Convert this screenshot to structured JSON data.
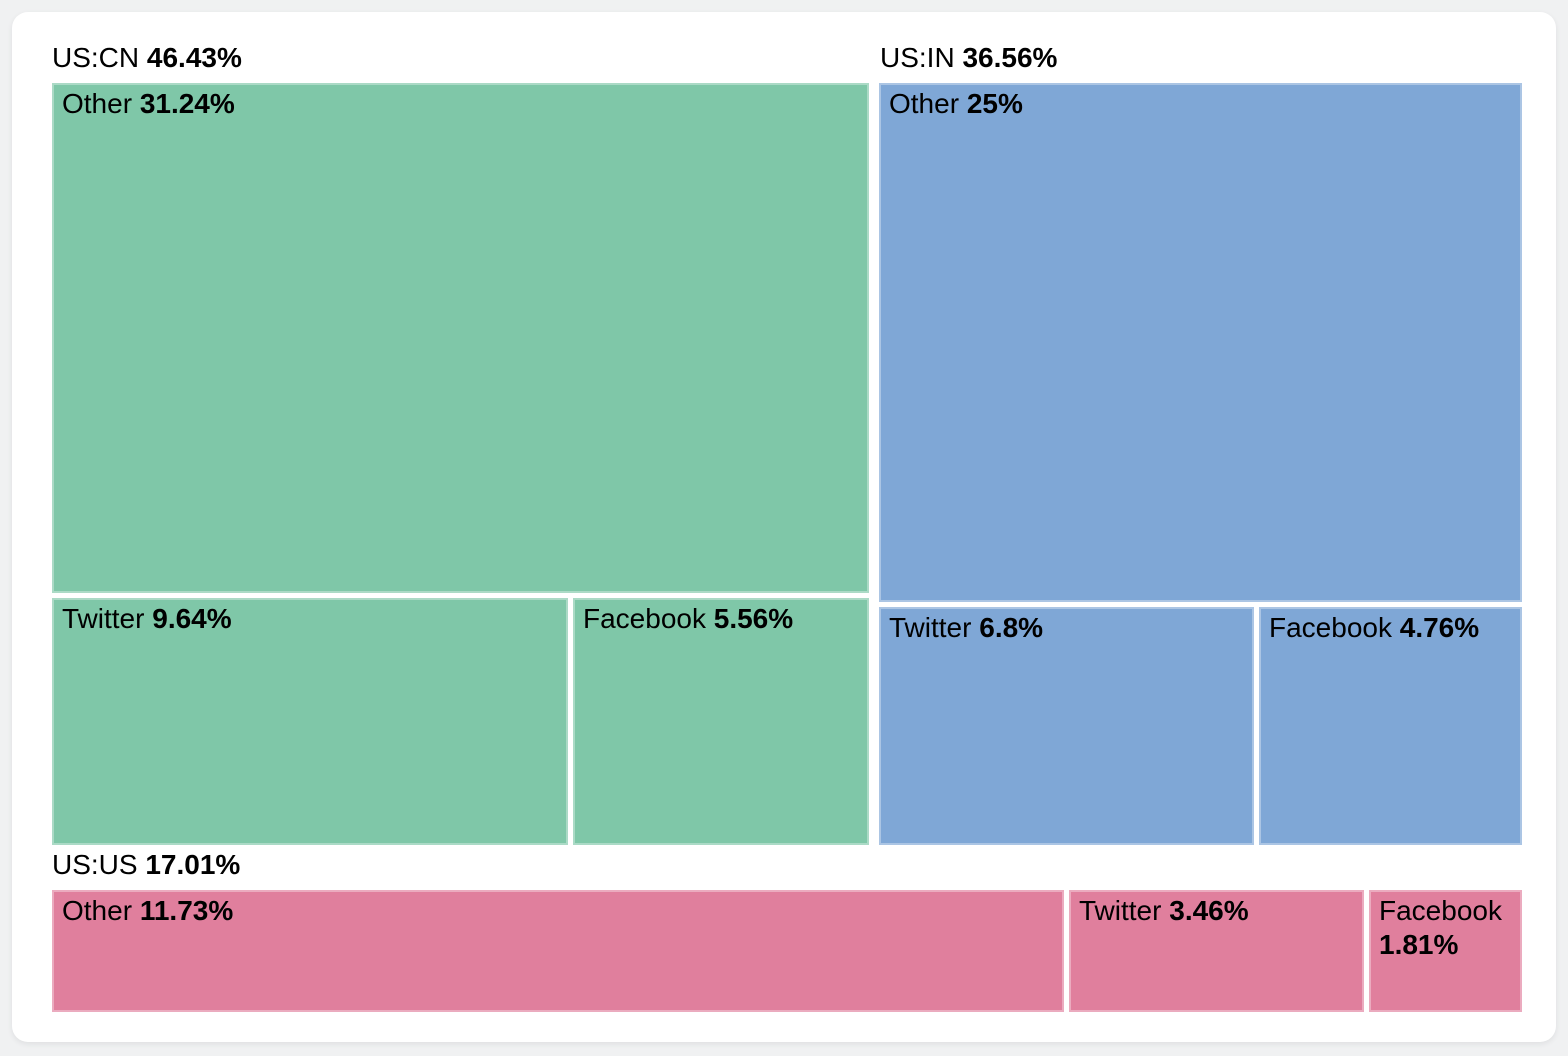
{
  "page": {
    "background_color": "#f0f1f2",
    "card_background_color": "#ffffff",
    "text_color": "#000000"
  },
  "chart_data": {
    "type": "treemap",
    "title": "",
    "unit": "%",
    "legend": "none",
    "groups": [
      {
        "id": "us-cn",
        "label": "US:CN",
        "value": 46.43,
        "value_label": "46.43%",
        "color": "#7fc7a8",
        "children": [
          {
            "label": "Other",
            "value": 31.24,
            "value_label": "31.24%"
          },
          {
            "label": "Twitter",
            "value": 9.64,
            "value_label": "9.64%"
          },
          {
            "label": "Facebook",
            "value": 5.56,
            "value_label": "5.56%"
          }
        ]
      },
      {
        "id": "us-in",
        "label": "US:IN",
        "value": 36.56,
        "value_label": "36.56%",
        "color": "#7fa7d6",
        "children": [
          {
            "label": "Other",
            "value": 25,
            "value_label": "25%"
          },
          {
            "label": "Twitter",
            "value": 6.8,
            "value_label": "6.8%"
          },
          {
            "label": "Facebook",
            "value": 4.76,
            "value_label": "4.76%"
          }
        ]
      },
      {
        "id": "us-us",
        "label": "US:US",
        "value": 17.01,
        "value_label": "17.01%",
        "color": "#e07f9d",
        "children": [
          {
            "label": "Other",
            "value": 11.73,
            "value_label": "11.73%"
          },
          {
            "label": "Twitter",
            "value": 3.46,
            "value_label": "3.46%"
          },
          {
            "label": "Facebook",
            "value": 1.81,
            "value_label": "1.81%"
          }
        ]
      }
    ]
  }
}
